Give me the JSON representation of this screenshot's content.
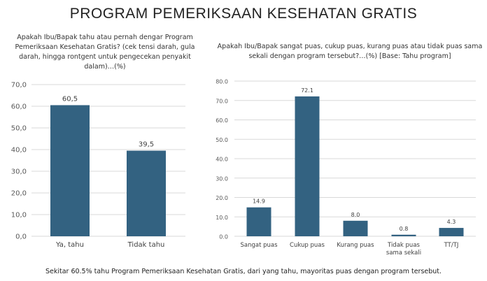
{
  "title": "PROGRAM PEMERIKSAAN KESEHATAN GRATIS",
  "footer": "Sekitar 60.5% tahu Program Pemeriksaan Kesehatan Gratis, dari yang tahu, mayoritas puas dengan program tersebut.",
  "colors": {
    "bar": "#336281",
    "grid": "#d9d9d9"
  },
  "chart_data": [
    {
      "type": "bar",
      "title": "Apakah Ibu/Bapak tahu atau pernah dengar Program Pemeriksaan Kesehatan Gratis? (cek tensi darah, gula darah, hingga rontgent untuk pengecekan penyakit dalam)…(%)",
      "categories": [
        "Ya, tahu",
        "Tidak tahu"
      ],
      "values": [
        60.5,
        39.5
      ],
      "value_labels": [
        "60,5",
        "39,5"
      ],
      "ylim": [
        0,
        70
      ],
      "yticks": [
        "0,0",
        "10,0",
        "20,0",
        "30,0",
        "40,0",
        "50,0",
        "60,0",
        "70,0"
      ],
      "grid": true
    },
    {
      "type": "bar",
      "title": "Apakah Ibu/Bapak sangat puas, cukup puas, kurang puas atau tidak puas sama sekali dengan program tersebut?…(%)  [Base: Tahu program]",
      "categories": [
        [
          "Sangat puas"
        ],
        [
          "Cukup puas"
        ],
        [
          "Kurang puas"
        ],
        [
          "Tidak puas",
          "sama sekali"
        ],
        [
          "TT/TJ"
        ]
      ],
      "values": [
        14.9,
        72.1,
        8.0,
        0.8,
        4.3
      ],
      "value_labels": [
        "14.9",
        "72.1",
        "8.0",
        "0.8",
        "4.3"
      ],
      "ylim": [
        0,
        80
      ],
      "yticks": [
        "0.0",
        "10.0",
        "20.0",
        "30.0",
        "40.0",
        "50.0",
        "60.0",
        "70.0",
        "80.0"
      ],
      "grid": true
    }
  ]
}
